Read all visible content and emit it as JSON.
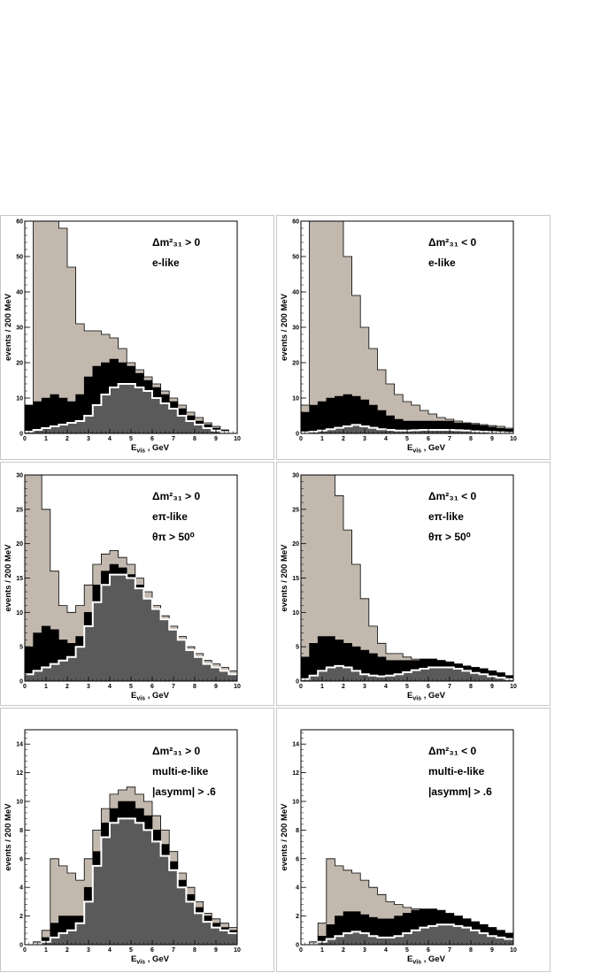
{
  "colors": {
    "background_component": "#c2b8ae",
    "band": "#000000",
    "signal": "#5a5a5a",
    "frame": "#000000"
  },
  "labels": {
    "ylabel": "events / 200 MeV",
    "xlabel_main": "E",
    "xlabel_sub": "vis",
    "xlabel_unit": ", GeV"
  },
  "chart_data": [
    {
      "type": "area",
      "panel": "top-left",
      "annotation": [
        "Δm²₃₁ > 0",
        "e-like"
      ],
      "xlim": [
        0,
        10
      ],
      "ylim": [
        0,
        60
      ],
      "xticks": [
        0,
        1,
        2,
        3,
        4,
        5,
        6,
        7,
        8,
        9,
        10
      ],
      "yticks": [
        0,
        10,
        20,
        30,
        40,
        50,
        60
      ],
      "x": [
        0.2,
        0.6,
        1.0,
        1.4,
        1.8,
        2.2,
        2.6,
        3.0,
        3.4,
        3.8,
        4.2,
        4.6,
        5.0,
        5.4,
        5.8,
        6.2,
        6.6,
        7.0,
        7.4,
        7.8,
        8.2,
        8.6,
        9.0,
        9.4,
        9.8
      ],
      "total": [
        8,
        60,
        60,
        60,
        58,
        47,
        31,
        29,
        29,
        28,
        27,
        24,
        20,
        18,
        16,
        14,
        12,
        10,
        8,
        6,
        4.5,
        3,
        2,
        1,
        0.3
      ],
      "band_top": [
        8,
        9,
        10,
        11,
        10,
        9,
        11,
        16,
        19,
        20,
        21,
        20,
        19,
        17,
        15,
        13,
        11,
        9,
        7,
        5,
        3.5,
        2.5,
        1.5,
        0.8,
        0.3
      ],
      "band_bottom": [
        0.5,
        1,
        1.5,
        2,
        2.5,
        3,
        3.5,
        5,
        8,
        11,
        13,
        14,
        14,
        13,
        12,
        10,
        8.5,
        7,
        5,
        3.5,
        2.5,
        1.5,
        0.8,
        0.4,
        0.2
      ]
    },
    {
      "type": "area",
      "panel": "top-right",
      "annotation": [
        "Δm²₃₁ < 0",
        "e-like"
      ],
      "xlim": [
        0,
        10
      ],
      "ylim": [
        0,
        60
      ],
      "xticks": [
        0,
        1,
        2,
        3,
        4,
        5,
        6,
        7,
        8,
        9,
        10
      ],
      "yticks": [
        0,
        10,
        20,
        30,
        40,
        50,
        60
      ],
      "x": [
        0.2,
        0.6,
        1.0,
        1.4,
        1.8,
        2.2,
        2.6,
        3.0,
        3.4,
        3.8,
        4.2,
        4.6,
        5.0,
        5.4,
        5.8,
        6.2,
        6.6,
        7.0,
        7.4,
        7.8,
        8.2,
        8.6,
        9.0,
        9.4,
        9.8
      ],
      "total": [
        8,
        60,
        60,
        60,
        60,
        50,
        39,
        30,
        24,
        18,
        14,
        11,
        9,
        8,
        6.5,
        5.5,
        4.5,
        4,
        3.5,
        3,
        2.8,
        2.5,
        2.2,
        2,
        1.5
      ],
      "band_top": [
        6,
        8,
        9,
        10,
        10.5,
        11,
        10.5,
        9.5,
        8,
        6.5,
        5,
        4,
        3.5,
        3.5,
        3.5,
        3.5,
        3.5,
        3.5,
        3,
        2.8,
        2.5,
        2.2,
        1.8,
        1.5,
        1.2
      ],
      "band_bottom": [
        0.3,
        0.5,
        0.8,
        1.2,
        1.6,
        2,
        2.4,
        2,
        1.6,
        1.2,
        1,
        0.8,
        0.8,
        0.9,
        1,
        1,
        1,
        1,
        0.9,
        0.8,
        0.6,
        0.5,
        0.4,
        0.3,
        0.2
      ]
    },
    {
      "type": "area",
      "panel": "middle-left",
      "annotation": [
        "Δm²₃₁ > 0",
        "eπ-like",
        "θπ > 50⁰"
      ],
      "xlim": [
        0,
        10
      ],
      "ylim": [
        0,
        30
      ],
      "xticks": [
        0,
        1,
        2,
        3,
        4,
        5,
        6,
        7,
        8,
        9,
        10
      ],
      "yticks": [
        0,
        5,
        10,
        15,
        20,
        25,
        30
      ],
      "x": [
        0.2,
        0.6,
        1.0,
        1.4,
        1.8,
        2.2,
        2.6,
        3.0,
        3.4,
        3.8,
        4.2,
        4.6,
        5.0,
        5.4,
        5.8,
        6.2,
        6.6,
        7.0,
        7.4,
        7.8,
        8.2,
        8.6,
        9.0,
        9.4,
        9.8
      ],
      "total": [
        30,
        30,
        25,
        16,
        11,
        10,
        11,
        14,
        17,
        18.5,
        19,
        18,
        17,
        15,
        13,
        11,
        9.5,
        8,
        6.5,
        5,
        4,
        3,
        2.5,
        2,
        1.5
      ],
      "band_top": [
        5,
        7,
        8,
        7.5,
        6,
        5.5,
        6.5,
        10,
        14,
        16,
        17,
        16.5,
        15.5,
        14,
        12,
        10.5,
        9,
        7.5,
        6,
        4.5,
        3.5,
        2.5,
        2,
        1.5,
        1
      ],
      "band_bottom": [
        1,
        1.5,
        2,
        2.5,
        3,
        3.5,
        5,
        8,
        11.5,
        14,
        15.5,
        15.5,
        15,
        13.5,
        12,
        10.5,
        9,
        7.5,
        6,
        4.5,
        3.5,
        2.5,
        2,
        1.5,
        1
      ]
    },
    {
      "type": "area",
      "panel": "middle-right",
      "annotation": [
        "Δm²₃₁ < 0",
        "eπ-like",
        "θπ > 50⁰"
      ],
      "xlim": [
        0,
        10
      ],
      "ylim": [
        0,
        30
      ],
      "xticks": [
        0,
        1,
        2,
        3,
        4,
        5,
        6,
        7,
        8,
        9,
        10
      ],
      "yticks": [
        0,
        5,
        10,
        15,
        20,
        25,
        30
      ],
      "x": [
        0.2,
        0.6,
        1.0,
        1.4,
        1.8,
        2.2,
        2.6,
        3.0,
        3.4,
        3.8,
        4.2,
        4.6,
        5.0,
        5.4,
        5.8,
        6.2,
        6.6,
        7.0,
        7.4,
        7.8,
        8.2,
        8.6,
        9.0,
        9.4,
        9.8
      ],
      "total": [
        30,
        30,
        30,
        30,
        27,
        22,
        17,
        12,
        8,
        5.5,
        4,
        4,
        3.5,
        3.2,
        3.2,
        3.2,
        3,
        2.8,
        2.5,
        2.2,
        2,
        1.8,
        1.5,
        1.2,
        0.8
      ],
      "band_top": [
        3.5,
        5.5,
        6.5,
        6.5,
        6,
        5.5,
        5,
        4.5,
        4,
        3.5,
        3,
        3,
        3,
        3,
        3.2,
        3.2,
        3,
        2.8,
        2.5,
        2.2,
        2,
        1.8,
        1.5,
        1.2,
        0.8
      ],
      "band_bottom": [
        0.3,
        0.8,
        1.5,
        2,
        2.2,
        2,
        1.5,
        1,
        0.8,
        0.7,
        0.8,
        1,
        1.3,
        1.6,
        1.8,
        2,
        2,
        2,
        1.8,
        1.5,
        1.2,
        1,
        0.7,
        0.5,
        0.3
      ]
    },
    {
      "type": "area",
      "panel": "bottom-left",
      "annotation": [
        "Δm²₃₁ > 0",
        "multi-e-like",
        "|asymm| > .6"
      ],
      "xlim": [
        0,
        10
      ],
      "ylim": [
        0,
        15
      ],
      "xticks": [
        0,
        1,
        2,
        3,
        4,
        5,
        6,
        7,
        8,
        9,
        10
      ],
      "yticks": [
        0,
        2,
        4,
        6,
        8,
        10,
        12,
        14
      ],
      "x": [
        0.2,
        0.6,
        1.0,
        1.4,
        1.8,
        2.2,
        2.6,
        3.0,
        3.4,
        3.8,
        4.2,
        4.6,
        5.0,
        5.4,
        5.8,
        6.2,
        6.6,
        7.0,
        7.4,
        7.8,
        8.2,
        8.6,
        9.0,
        9.4,
        9.8
      ],
      "total": [
        0,
        0.2,
        1,
        6,
        5.5,
        5,
        4.5,
        6,
        8,
        9.5,
        10.5,
        10.8,
        11,
        10.5,
        10,
        9,
        8,
        6.5,
        5,
        4,
        3,
        2.2,
        1.8,
        1.5,
        1.2
      ],
      "band_top": [
        0,
        0.1,
        0.5,
        1.5,
        2,
        2,
        2,
        4,
        6.5,
        8.5,
        9.5,
        10,
        10,
        9.5,
        9,
        8,
        7,
        5.8,
        4.5,
        3.5,
        2.6,
        2,
        1.5,
        1.2,
        1
      ],
      "band_bottom": [
        0,
        0.05,
        0.2,
        0.5,
        0.8,
        1,
        1.5,
        3,
        5.5,
        7.5,
        8.5,
        8.8,
        8.8,
        8.5,
        8,
        7.2,
        6.2,
        5.2,
        4,
        3,
        2.2,
        1.6,
        1.2,
        1,
        0.8
      ]
    },
    {
      "type": "area",
      "panel": "bottom-right",
      "annotation": [
        "Δm²₃₁ < 0",
        "multi-e-like",
        "|asymm| > .6"
      ],
      "xlim": [
        0,
        10
      ],
      "ylim": [
        0,
        15
      ],
      "xticks": [
        0,
        1,
        2,
        3,
        4,
        5,
        6,
        7,
        8,
        9,
        10
      ],
      "yticks": [
        0,
        2,
        4,
        6,
        8,
        10,
        12,
        14
      ],
      "x": [
        0.2,
        0.6,
        1.0,
        1.4,
        1.8,
        2.2,
        2.6,
        3.0,
        3.4,
        3.8,
        4.2,
        4.6,
        5.0,
        5.4,
        5.8,
        6.2,
        6.6,
        7.0,
        7.4,
        7.8,
        8.2,
        8.6,
        9.0,
        9.4,
        9.8
      ],
      "total": [
        0,
        0.2,
        1.5,
        6,
        5.5,
        5.2,
        5,
        4.5,
        4,
        3.5,
        3,
        2.8,
        2.6,
        2.5,
        2.4,
        2.3,
        2.2,
        2.1,
        2,
        1.8,
        1.6,
        1.4,
        1.2,
        1,
        0.8
      ],
      "band_top": [
        0,
        0.1,
        0.6,
        1.4,
        2,
        2.3,
        2.3,
        2.1,
        1.9,
        1.8,
        1.8,
        2,
        2.2,
        2.4,
        2.5,
        2.5,
        2.4,
        2.2,
        2,
        1.8,
        1.6,
        1.4,
        1.2,
        1,
        0.8
      ],
      "band_bottom": [
        0,
        0.05,
        0.2,
        0.4,
        0.6,
        0.8,
        0.9,
        0.8,
        0.6,
        0.5,
        0.5,
        0.6,
        0.8,
        1,
        1.2,
        1.3,
        1.4,
        1.4,
        1.3,
        1.2,
        1,
        0.8,
        0.6,
        0.5,
        0.4
      ]
    }
  ]
}
